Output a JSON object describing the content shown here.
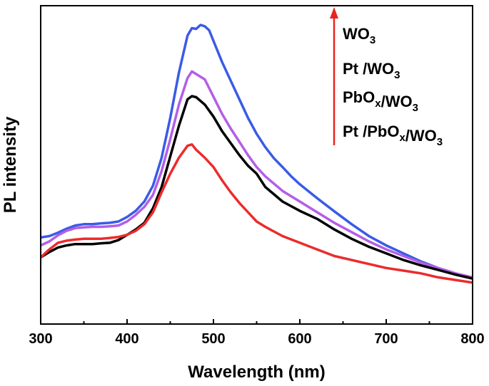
{
  "chart_data": {
    "type": "line",
    "xlabel": "Wavelength (nm)",
    "ylabel": "PL intensity",
    "xlim": [
      300,
      800
    ],
    "ylim": [
      0,
      100
    ],
    "xticks": [
      "300",
      "400",
      "500",
      "600",
      "700",
      "800"
    ],
    "grid": false,
    "legend_position": "top-right",
    "legend_arrow_color": "#e8241f",
    "series": [
      {
        "name": "WO3",
        "name_parts": [
          {
            "t": "WO"
          },
          {
            "t": "3",
            "sub": true
          }
        ],
        "color": "#3a5be6",
        "x": [
          300,
          310,
          320,
          330,
          340,
          350,
          360,
          370,
          380,
          390,
          400,
          410,
          420,
          430,
          440,
          450,
          460,
          470,
          475,
          480,
          485,
          490,
          495,
          500,
          510,
          520,
          530,
          540,
          550,
          560,
          570,
          580,
          590,
          600,
          620,
          640,
          660,
          680,
          700,
          720,
          740,
          760,
          780,
          800
        ],
        "y": [
          20.0,
          20.5,
          21.8,
          23.3,
          24.5,
          25.0,
          25.0,
          25.3,
          25.5,
          26.0,
          27.7,
          30.0,
          33.5,
          39.5,
          50.0,
          65.0,
          82.0,
          96.0,
          98.8,
          98.5,
          100.0,
          99.5,
          98.0,
          94.0,
          86.0,
          79.0,
          72.0,
          65.0,
          59.0,
          54.0,
          49.8,
          46.5,
          43.0,
          40.0,
          34.8,
          29.8,
          25.0,
          20.5,
          17.0,
          14.0,
          11.0,
          8.5,
          6.5,
          4.5
        ]
      },
      {
        "name": "Pt /WO3",
        "name_parts": [
          {
            "t": "Pt /WO"
          },
          {
            "t": "3",
            "sub": true
          }
        ],
        "color": "#b45ee6",
        "x": [
          300,
          310,
          320,
          330,
          340,
          350,
          360,
          370,
          380,
          390,
          400,
          410,
          420,
          430,
          440,
          450,
          460,
          470,
          475,
          480,
          490,
          500,
          510,
          520,
          530,
          540,
          550,
          560,
          580,
          600,
          620,
          640,
          660,
          680,
          700,
          720,
          740,
          760,
          780,
          800
        ],
        "y": [
          17.0,
          18.5,
          20.8,
          22.5,
          23.5,
          23.8,
          24.0,
          24.0,
          24.2,
          24.5,
          26.0,
          28.5,
          31.5,
          36.0,
          45.0,
          57.0,
          70.0,
          80.0,
          82.5,
          81.5,
          79.5,
          73.0,
          66.5,
          61.0,
          56.0,
          51.0,
          46.5,
          43.0,
          37.5,
          33.5,
          29.5,
          25.5,
          22.0,
          18.5,
          15.5,
          13.0,
          10.5,
          8.5,
          6.5,
          5.0
        ]
      },
      {
        "name": "PbOx/WO3",
        "name_parts": [
          {
            "t": "PbO"
          },
          {
            "t": "x",
            "sub": true
          },
          {
            "t": "/WO"
          },
          {
            "t": "3",
            "sub": true
          }
        ],
        "color": "#000000",
        "x": [
          300,
          310,
          320,
          330,
          340,
          350,
          360,
          370,
          380,
          390,
          400,
          410,
          420,
          430,
          440,
          450,
          460,
          470,
          475,
          480,
          490,
          500,
          510,
          520,
          530,
          540,
          550,
          560,
          580,
          600,
          620,
          640,
          660,
          680,
          700,
          720,
          740,
          760,
          780,
          800
        ],
        "y": [
          12.5,
          14.5,
          16.2,
          17.0,
          17.5,
          17.5,
          17.5,
          17.8,
          18.0,
          19.0,
          21.0,
          23.0,
          25.5,
          31.0,
          39.0,
          50.5,
          62.0,
          72.0,
          73.2,
          72.8,
          70.0,
          65.5,
          60.0,
          55.5,
          51.0,
          47.0,
          44.0,
          39.0,
          33.5,
          30.0,
          27.0,
          23.0,
          19.5,
          16.5,
          14.0,
          11.5,
          9.5,
          7.8,
          6.0,
          4.5
        ]
      },
      {
        "name": "Pt /PbOx/WO3",
        "name_parts": [
          {
            "t": "Pt /PbO"
          },
          {
            "t": "x",
            "sub": true
          },
          {
            "t": "/WO"
          },
          {
            "t": "3",
            "sub": true
          }
        ],
        "color": "#ec2b2b",
        "x": [
          300,
          310,
          320,
          330,
          340,
          350,
          360,
          370,
          380,
          390,
          400,
          410,
          420,
          430,
          440,
          450,
          460,
          470,
          475,
          480,
          490,
          500,
          510,
          520,
          530,
          540,
          550,
          560,
          580,
          600,
          620,
          640,
          660,
          680,
          700,
          720,
          740,
          760,
          780,
          800
        ],
        "y": [
          12.5,
          15.5,
          18.0,
          18.8,
          19.2,
          19.5,
          19.5,
          19.5,
          19.8,
          20.2,
          21.0,
          22.5,
          25.0,
          29.5,
          37.0,
          44.0,
          50.0,
          54.5,
          55.0,
          53.0,
          50.0,
          46.5,
          41.5,
          37.0,
          33.0,
          29.5,
          26.0,
          24.0,
          20.5,
          18.0,
          15.5,
          13.0,
          11.5,
          10.0,
          8.5,
          7.5,
          6.5,
          5.0,
          4.0,
          3.0
        ]
      }
    ]
  }
}
